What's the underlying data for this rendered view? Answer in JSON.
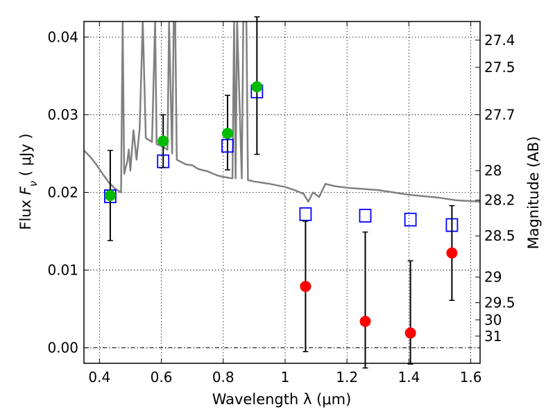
{
  "chart_data": {
    "type": "scatter",
    "xlabel": "Wavelength  λ (μm)",
    "ylabel": "Flux  F_ν  ( μJy )",
    "ylabel_parts": {
      "pre": "Flux  ",
      "symbol": "F",
      "subscript": "ν",
      "post": "  ( μJy )"
    },
    "y2label": "Magnitude (AB)",
    "xlim": [
      0.35,
      1.63
    ],
    "ylim": [
      -0.002,
      0.042
    ],
    "grid": true,
    "x_ticks": [
      {
        "value": 0.4,
        "label": "0.4"
      },
      {
        "value": 0.6,
        "label": "0.6"
      },
      {
        "value": 0.8,
        "label": "0.8"
      },
      {
        "value": 1.0,
        "label": "1"
      },
      {
        "value": 1.2,
        "label": "1.2"
      },
      {
        "value": 1.4,
        "label": "1.4"
      },
      {
        "value": 1.6,
        "label": "1.6"
      }
    ],
    "y_ticks": [
      {
        "value": 0.0,
        "label": "0.00"
      },
      {
        "value": 0.01,
        "label": "0.01"
      },
      {
        "value": 0.02,
        "label": "0.02"
      },
      {
        "value": 0.03,
        "label": "0.03"
      },
      {
        "value": 0.04,
        "label": "0.04"
      }
    ],
    "y2_ticks": [
      {
        "label": "27.4",
        "flux": 0.0396
      },
      {
        "label": "27.5",
        "flux": 0.0361
      },
      {
        "label": "27.7",
        "flux": 0.03
      },
      {
        "label": "28",
        "flux": 0.0228
      },
      {
        "label": "28.2",
        "flux": 0.019
      },
      {
        "label": "28.5",
        "flux": 0.0144
      },
      {
        "label": "29",
        "flux": 0.0091
      },
      {
        "label": "29.5",
        "flux": 0.0058
      },
      {
        "label": "30",
        "flux": 0.0036
      },
      {
        "label": "31",
        "flux": 0.0015
      }
    ],
    "model_spectrum": {
      "color": "#808080",
      "points": [
        [
          0.35,
          0.0254
        ],
        [
          0.37,
          0.0246
        ],
        [
          0.39,
          0.0236
        ],
        [
          0.41,
          0.0224
        ],
        [
          0.43,
          0.0213
        ],
        [
          0.45,
          0.0205
        ],
        [
          0.47,
          0.02
        ],
        [
          0.475,
          0.042
        ],
        [
          0.48,
          0.0224
        ],
        [
          0.49,
          0.024
        ],
        [
          0.495,
          0.0255
        ],
        [
          0.5,
          0.0228
        ],
        [
          0.51,
          0.028
        ],
        [
          0.52,
          0.0242
        ],
        [
          0.53,
          0.0282
        ],
        [
          0.54,
          0.042
        ],
        [
          0.55,
          0.027
        ],
        [
          0.57,
          0.0265
        ],
        [
          0.58,
          0.042
        ],
        [
          0.585,
          0.0262
        ],
        [
          0.6,
          0.026
        ],
        [
          0.62,
          0.0255
        ],
        [
          0.625,
          0.042
        ],
        [
          0.635,
          0.025
        ],
        [
          0.64,
          0.042
        ],
        [
          0.645,
          0.042
        ],
        [
          0.65,
          0.0242
        ],
        [
          0.68,
          0.0236
        ],
        [
          0.7,
          0.0235
        ],
        [
          0.72,
          0.023
        ],
        [
          0.75,
          0.0227
        ],
        [
          0.78,
          0.0222
        ],
        [
          0.8,
          0.022
        ],
        [
          0.83,
          0.0218
        ],
        [
          0.835,
          0.042
        ],
        [
          0.84,
          0.0218
        ],
        [
          0.845,
          0.042
        ],
        [
          0.86,
          0.0218
        ],
        [
          0.865,
          0.042
        ],
        [
          0.875,
          0.042
        ],
        [
          0.88,
          0.0216
        ],
        [
          0.9,
          0.0214
        ],
        [
          0.95,
          0.0211
        ],
        [
          1.0,
          0.0207
        ],
        [
          1.03,
          0.0203
        ],
        [
          1.06,
          0.0198
        ],
        [
          1.075,
          0.0188
        ],
        [
          1.09,
          0.02
        ],
        [
          1.11,
          0.0194
        ],
        [
          1.13,
          0.0211
        ],
        [
          1.16,
          0.0208
        ],
        [
          1.2,
          0.0206
        ],
        [
          1.3,
          0.0203
        ],
        [
          1.4,
          0.0197
        ],
        [
          1.5,
          0.0193
        ],
        [
          1.55,
          0.019
        ],
        [
          1.63,
          0.0188
        ]
      ]
    },
    "model_photometry": {
      "marker": "open-square",
      "color": "#0000ff",
      "x": [
        0.435,
        0.606,
        0.814,
        0.909,
        1.066,
        1.259,
        1.405,
        1.539
      ],
      "y": [
        0.0195,
        0.024,
        0.026,
        0.033,
        0.0172,
        0.017,
        0.0165,
        0.0158
      ]
    },
    "detections": {
      "marker": "filled-circle",
      "color": "#00bb00",
      "x": [
        0.435,
        0.606,
        0.814,
        0.909
      ],
      "y": [
        0.0196,
        0.0266,
        0.0276,
        0.0336
      ],
      "err_low": [
        0.0058,
        0.0034,
        0.0047,
        0.0087
      ],
      "err_high": [
        0.0058,
        0.0034,
        0.0049,
        0.009
      ]
    },
    "non_detections": {
      "marker": "filled-circle",
      "color": "#ff0000",
      "x": [
        1.066,
        1.259,
        1.405,
        1.539
      ],
      "y": [
        0.0079,
        0.0034,
        0.0019,
        0.0122
      ],
      "err_low": [
        0.0084,
        0.006,
        0.004,
        0.0061
      ],
      "err_high": [
        0.0084,
        0.0115,
        0.0093,
        0.0061
      ]
    },
    "errorbar_color": "#000000",
    "zero_line": true
  }
}
